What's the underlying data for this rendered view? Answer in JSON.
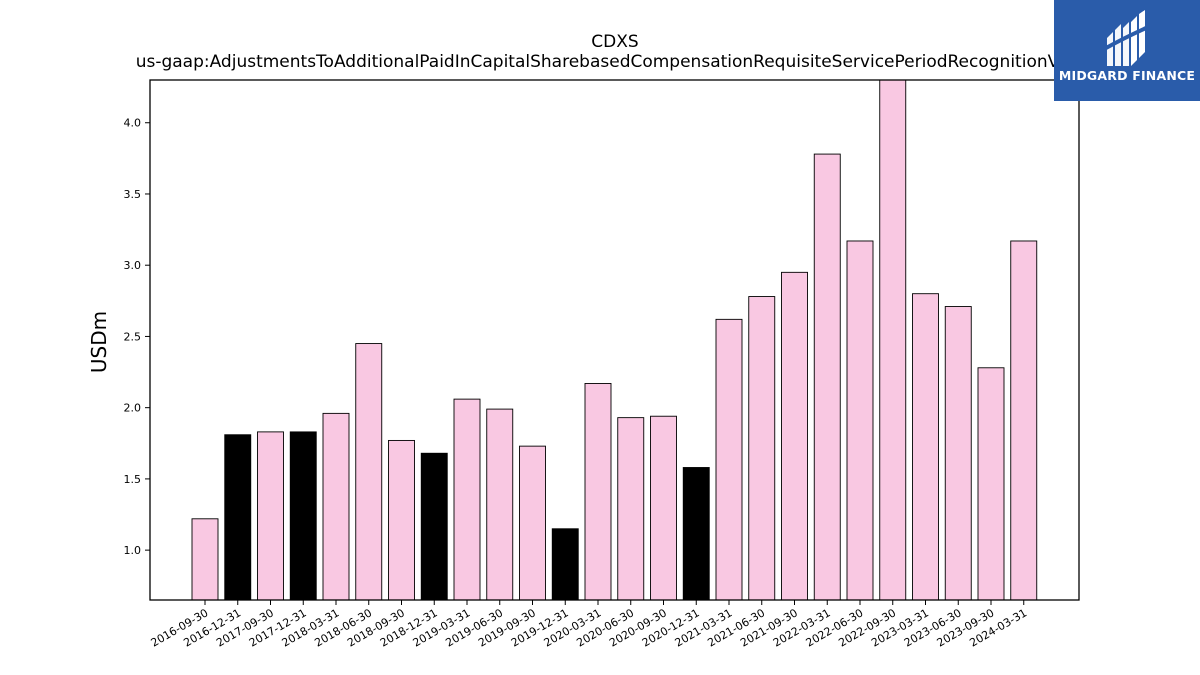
{
  "chart_data": {
    "type": "bar",
    "title": "CDXS",
    "subtitle": "us-gaap:AdjustmentsToAdditionalPaidInCapitalSharebasedCompensationRequisiteServicePeriodRecognitionValue",
    "xlabel": "",
    "ylabel": "USDm",
    "ylim": [
      0.65,
      4.3
    ],
    "yticks": [
      "1.0",
      "1.5",
      "2.0",
      "2.5",
      "3.0",
      "3.5",
      "4.0"
    ],
    "grid": false,
    "categories": [
      "2016-09-30",
      "2016-12-31",
      "2017-09-30",
      "2017-12-31",
      "2018-03-31",
      "2018-06-30",
      "2018-09-30",
      "2018-12-31",
      "2019-03-31",
      "2019-06-30",
      "2019-09-30",
      "2019-12-31",
      "2020-03-31",
      "2020-06-30",
      "2020-09-30",
      "2020-12-31",
      "2021-03-31",
      "2021-06-30",
      "2021-09-30",
      "2022-03-31",
      "2022-06-30",
      "2022-09-30",
      "2023-03-31",
      "2023-06-30",
      "2023-09-30",
      "2024-03-31"
    ],
    "values": [
      1.22,
      1.81,
      1.83,
      1.83,
      1.96,
      2.45,
      1.77,
      1.68,
      2.06,
      1.99,
      1.73,
      1.15,
      2.17,
      1.93,
      1.94,
      1.58,
      2.62,
      2.78,
      2.95,
      3.78,
      3.17,
      4.32,
      2.8,
      2.71,
      2.28,
      3.17
    ],
    "bar_colors": [
      "#f9c8e2",
      "#000000",
      "#f9c8e2",
      "#000000",
      "#f9c8e2",
      "#f9c8e2",
      "#f9c8e2",
      "#000000",
      "#f9c8e2",
      "#f9c8e2",
      "#f9c8e2",
      "#000000",
      "#f9c8e2",
      "#f9c8e2",
      "#f9c8e2",
      "#000000",
      "#f9c8e2",
      "#f9c8e2",
      "#f9c8e2",
      "#f9c8e2",
      "#f9c8e2",
      "#f9c8e2",
      "#f9c8e2",
      "#f9c8e2",
      "#f9c8e2",
      "#f9c8e2"
    ]
  },
  "logo": {
    "text": "MIDGARD FINANCE",
    "background": "#2a5caa"
  }
}
